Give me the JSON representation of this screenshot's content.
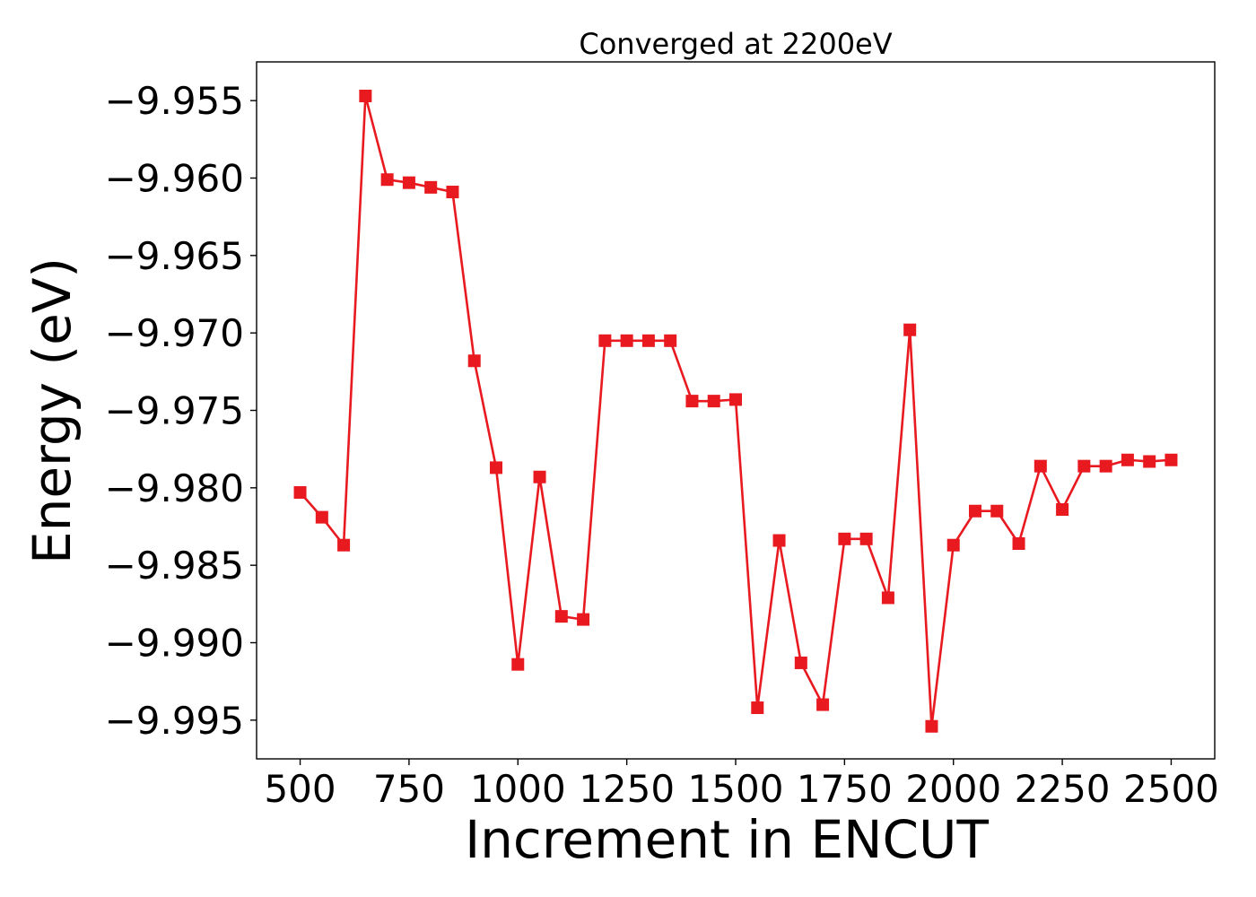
{
  "chart_data": {
    "type": "line",
    "title": "Converged at 2200eV",
    "xlabel": "Increment in ENCUT",
    "ylabel": "Energy (eV)",
    "xlim": [
      400,
      2600
    ],
    "ylim": [
      -9.9975,
      -9.9525
    ],
    "xticks": [
      500,
      750,
      1000,
      1250,
      1500,
      1750,
      2000,
      2250,
      2500
    ],
    "xtick_labels": [
      "500",
      "750",
      "1000",
      "1250",
      "1500",
      "1750",
      "2000",
      "2250",
      "2500"
    ],
    "yticks": [
      -9.955,
      -9.96,
      -9.965,
      -9.97,
      -9.975,
      -9.98,
      -9.985,
      -9.99,
      -9.995
    ],
    "ytick_labels": [
      "−9.955",
      "−9.960",
      "−9.965",
      "−9.970",
      "−9.975",
      "−9.980",
      "−9.985",
      "−9.990",
      "−9.995"
    ],
    "grid": false,
    "series": [
      {
        "color": "#e8191f",
        "marker": "square",
        "x": [
          500,
          550,
          600,
          650,
          700,
          750,
          800,
          850,
          900,
          950,
          1000,
          1050,
          1100,
          1150,
          1200,
          1250,
          1300,
          1350,
          1400,
          1450,
          1500,
          1550,
          1600,
          1650,
          1700,
          1750,
          1800,
          1850,
          1900,
          1950,
          2000,
          2050,
          2100,
          2150,
          2200,
          2250,
          2300,
          2350,
          2400,
          2450,
          2500
        ],
        "y": [
          -9.9803,
          -9.9819,
          -9.9837,
          -9.9547,
          -9.9601,
          -9.9603,
          -9.9606,
          -9.9609,
          -9.9718,
          -9.9787,
          -9.9914,
          -9.9793,
          -9.9883,
          -9.9885,
          -9.9705,
          -9.9705,
          -9.9705,
          -9.9705,
          -9.9744,
          -9.9744,
          -9.9743,
          -9.9942,
          -9.9834,
          -9.9913,
          -9.994,
          -9.9833,
          -9.9833,
          -9.9871,
          -9.9698,
          -9.9954,
          -9.9837,
          -9.9815,
          -9.9815,
          -9.9836,
          -9.9786,
          -9.9814,
          -9.9786,
          -9.9786,
          -9.9782,
          -9.9783,
          -9.9782
        ]
      }
    ]
  }
}
